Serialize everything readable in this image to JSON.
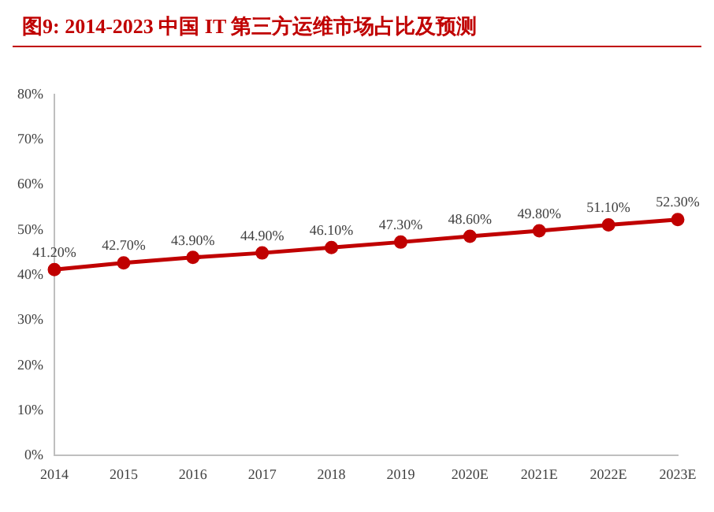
{
  "chart_data": {
    "type": "line",
    "title": "图9:    2014-2023 中国 IT 第三方运维市场占比及预测",
    "categories": [
      "2014",
      "2015",
      "2016",
      "2017",
      "2018",
      "2019",
      "2020E",
      "2021E",
      "2022E",
      "2023E"
    ],
    "series": [
      {
        "color": "#c00000",
        "values": [
          41.2,
          42.7,
          43.9,
          44.9,
          46.1,
          47.3,
          48.6,
          49.8,
          51.1,
          52.3
        ],
        "value_labels": [
          "41.20%",
          "42.70%",
          "43.90%",
          "44.90%",
          "46.10%",
          "47.30%",
          "48.60%",
          "49.80%",
          "51.10%",
          "52.30%"
        ]
      }
    ],
    "ylim": [
      0,
      80
    ],
    "yticks": [
      {
        "value": 0,
        "label": "0%"
      },
      {
        "value": 10,
        "label": "10%"
      },
      {
        "value": 20,
        "label": "20%"
      },
      {
        "value": 30,
        "label": "30%"
      },
      {
        "value": 40,
        "label": "40%"
      },
      {
        "value": 50,
        "label": "50%"
      },
      {
        "value": 60,
        "label": "60%"
      },
      {
        "value": 70,
        "label": "70%"
      },
      {
        "value": 80,
        "label": "80%"
      }
    ],
    "grid": false,
    "legend": false,
    "marker": "circle",
    "line_style": "solid"
  }
}
